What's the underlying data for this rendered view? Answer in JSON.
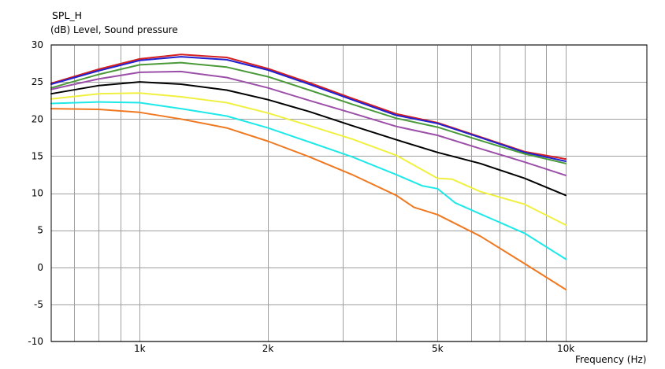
{
  "chart_data": {
    "type": "line",
    "title": "SPL_H",
    "ylabel": "(dB)  Level, Sound pressure",
    "xlabel": "Frequency  (Hz)",
    "x_scale": "log",
    "xlim": [
      620,
      15500
    ],
    "ylim": [
      -10,
      30
    ],
    "y_ticks": [
      -10,
      -5,
      0,
      5,
      10,
      15,
      20,
      25,
      30
    ],
    "y_tick_labels": [
      "-10",
      "-5",
      "0",
      "5",
      "10",
      "15",
      "20",
      "25",
      "30"
    ],
    "x_ticks": [
      1000,
      2000,
      5000,
      10000
    ],
    "x_tick_labels": [
      "1k",
      "2k",
      "5k",
      "10k"
    ],
    "grid": true,
    "series": [
      {
        "color": "#d42020",
        "x": [
          620,
          800,
          1000,
          1250,
          1600,
          2000,
          2500,
          3150,
          4000,
          5000,
          6300,
          8000,
          10000
        ],
        "y": [
          24.8,
          26.7,
          28.1,
          28.7,
          28.3,
          26.8,
          24.9,
          22.8,
          20.7,
          19.5,
          17.6,
          15.6,
          14.6
        ]
      },
      {
        "color": "#2020d0",
        "x": [
          620,
          800,
          1000,
          1250,
          1600,
          2000,
          2500,
          3150,
          4000,
          5000,
          6300,
          8000,
          10000
        ],
        "y": [
          24.7,
          26.5,
          27.9,
          28.4,
          28.0,
          26.6,
          24.7,
          22.6,
          20.5,
          19.4,
          17.5,
          15.5,
          14.3
        ]
      },
      {
        "color": "#4a9a3a",
        "x": [
          620,
          800,
          1000,
          1250,
          1600,
          2000,
          2500,
          3150,
          4000,
          5000,
          6300,
          8000,
          10000
        ],
        "y": [
          24.2,
          26.0,
          27.3,
          27.6,
          27.0,
          25.7,
          23.9,
          22.0,
          20.1,
          18.9,
          17.1,
          15.3,
          14.0
        ]
      },
      {
        "color": "#9b4fa8",
        "x": [
          620,
          800,
          1000,
          1250,
          1600,
          2000,
          2500,
          3150,
          4000,
          5000,
          6300,
          8000,
          10000
        ],
        "y": [
          24.0,
          25.4,
          26.3,
          26.4,
          25.6,
          24.2,
          22.5,
          20.8,
          19.0,
          17.8,
          16.0,
          14.2,
          12.4
        ]
      },
      {
        "color": "#000000",
        "x": [
          620,
          800,
          1000,
          1250,
          1600,
          2000,
          2500,
          3150,
          4000,
          5000,
          6300,
          8000,
          10000
        ],
        "y": [
          23.4,
          24.5,
          25.0,
          24.7,
          23.9,
          22.6,
          21.0,
          19.1,
          17.2,
          15.5,
          14.0,
          12.0,
          9.7
        ]
      },
      {
        "color": "#f0f040",
        "x": [
          620,
          800,
          1000,
          1250,
          1600,
          2000,
          2500,
          3150,
          4000,
          5000,
          5400,
          6300,
          8000,
          10000
        ],
        "y": [
          22.7,
          23.4,
          23.5,
          23.0,
          22.2,
          20.8,
          19.1,
          17.3,
          15.1,
          12.0,
          11.9,
          10.2,
          8.5,
          5.7
        ]
      },
      {
        "color": "#1ee8e8",
        "x": [
          620,
          800,
          1000,
          1250,
          1600,
          2000,
          2500,
          3150,
          4000,
          4600,
          5000,
          5500,
          6300,
          8000,
          10000
        ],
        "y": [
          22.1,
          22.3,
          22.2,
          21.4,
          20.4,
          18.8,
          16.9,
          14.9,
          12.5,
          11.0,
          10.6,
          8.7,
          7.2,
          4.6,
          1.1
        ]
      },
      {
        "color": "#f07820",
        "x": [
          620,
          800,
          1000,
          1250,
          1600,
          2000,
          2500,
          3150,
          4000,
          4400,
          5000,
          6300,
          8000,
          10000
        ],
        "y": [
          21.4,
          21.3,
          20.9,
          20.0,
          18.8,
          17.0,
          14.9,
          12.5,
          9.7,
          8.1,
          7.1,
          4.2,
          0.5,
          -3.0
        ]
      }
    ]
  }
}
